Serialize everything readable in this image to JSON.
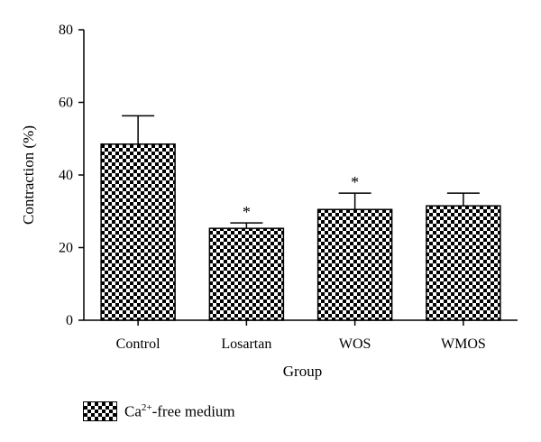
{
  "chart_data": {
    "type": "bar",
    "categories": [
      "Control",
      "Losartan",
      "WOS",
      "WMOS"
    ],
    "series": [
      {
        "name": "Ca2+-free medium",
        "values": [
          48.5,
          25.3,
          30.5,
          31.5
        ],
        "error": [
          7.8,
          1.5,
          4.5,
          3.5
        ],
        "significance": [
          "",
          "*",
          "*",
          ""
        ]
      }
    ],
    "xlabel": "Group",
    "ylabel": "Contraction (%)",
    "ylim": [
      0,
      80
    ],
    "yticks": [
      0,
      20,
      40,
      60,
      80
    ],
    "grid": false,
    "legend_position": "bottom-left",
    "legend": {
      "prefix": "Ca",
      "superscript": "2+",
      "suffix": "-free medium"
    },
    "bar_fill": "black-white checkerboard"
  }
}
